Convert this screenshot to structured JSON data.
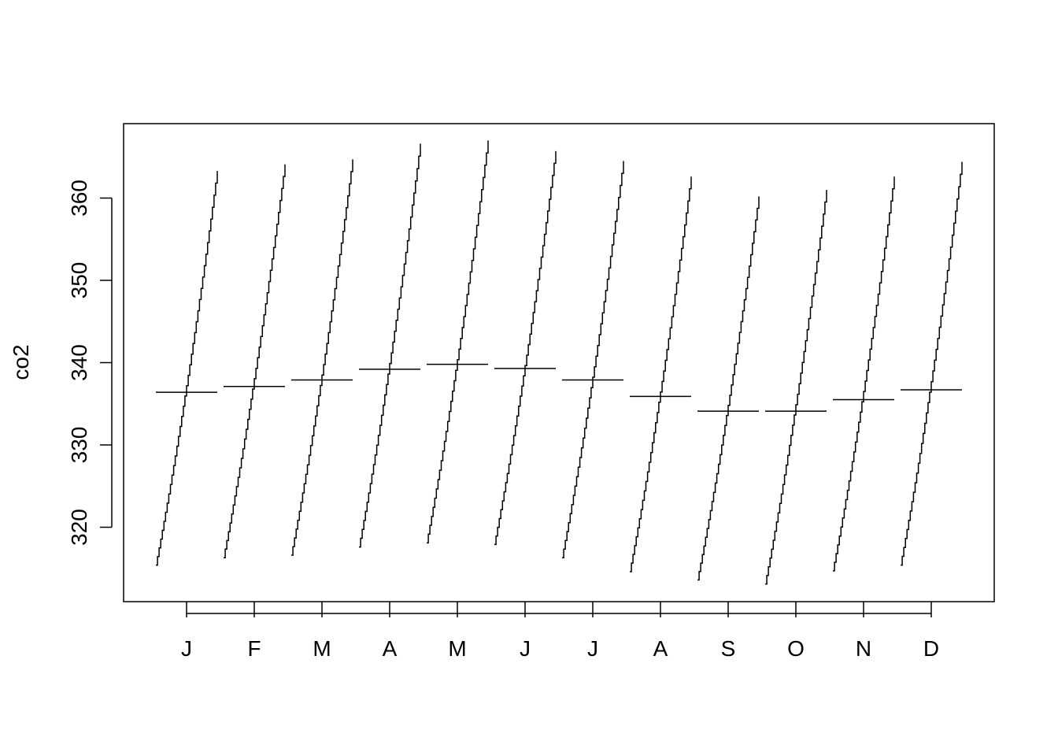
{
  "chart_data": {
    "type": "line",
    "subtype": "monthplot",
    "title": "",
    "xlabel": "",
    "ylabel": "co2",
    "categories": [
      "J",
      "F",
      "M",
      "A",
      "M",
      "J",
      "J",
      "A",
      "S",
      "O",
      "N",
      "D"
    ],
    "y_ticks": [
      320,
      330,
      340,
      350,
      360
    ],
    "ylim": [
      312.9,
      367.0
    ],
    "grid": false,
    "legend": "none",
    "series": [
      {
        "start": 315.4,
        "end": 363.3,
        "mean": 336.4
      },
      {
        "start": 316.3,
        "end": 364.1,
        "mean": 337.1
      },
      {
        "start": 316.6,
        "end": 364.7,
        "mean": 337.9
      },
      {
        "start": 317.6,
        "end": 366.6,
        "mean": 339.2
      },
      {
        "start": 318.1,
        "end": 367.0,
        "mean": 339.8
      },
      {
        "start": 317.9,
        "end": 365.7,
        "mean": 339.3
      },
      {
        "start": 316.3,
        "end": 364.5,
        "mean": 337.9
      },
      {
        "start": 314.6,
        "end": 362.6,
        "mean": 335.9
      },
      {
        "start": 313.6,
        "end": 360.2,
        "mean": 334.1
      },
      {
        "start": 313.1,
        "end": 361.0,
        "mean": 334.1
      },
      {
        "start": 314.7,
        "end": 362.6,
        "mean": 335.5
      },
      {
        "start": 315.4,
        "end": 364.4,
        "mean": 336.7
      }
    ],
    "colors": {
      "line": "#000000",
      "background": "#ffffff"
    }
  }
}
